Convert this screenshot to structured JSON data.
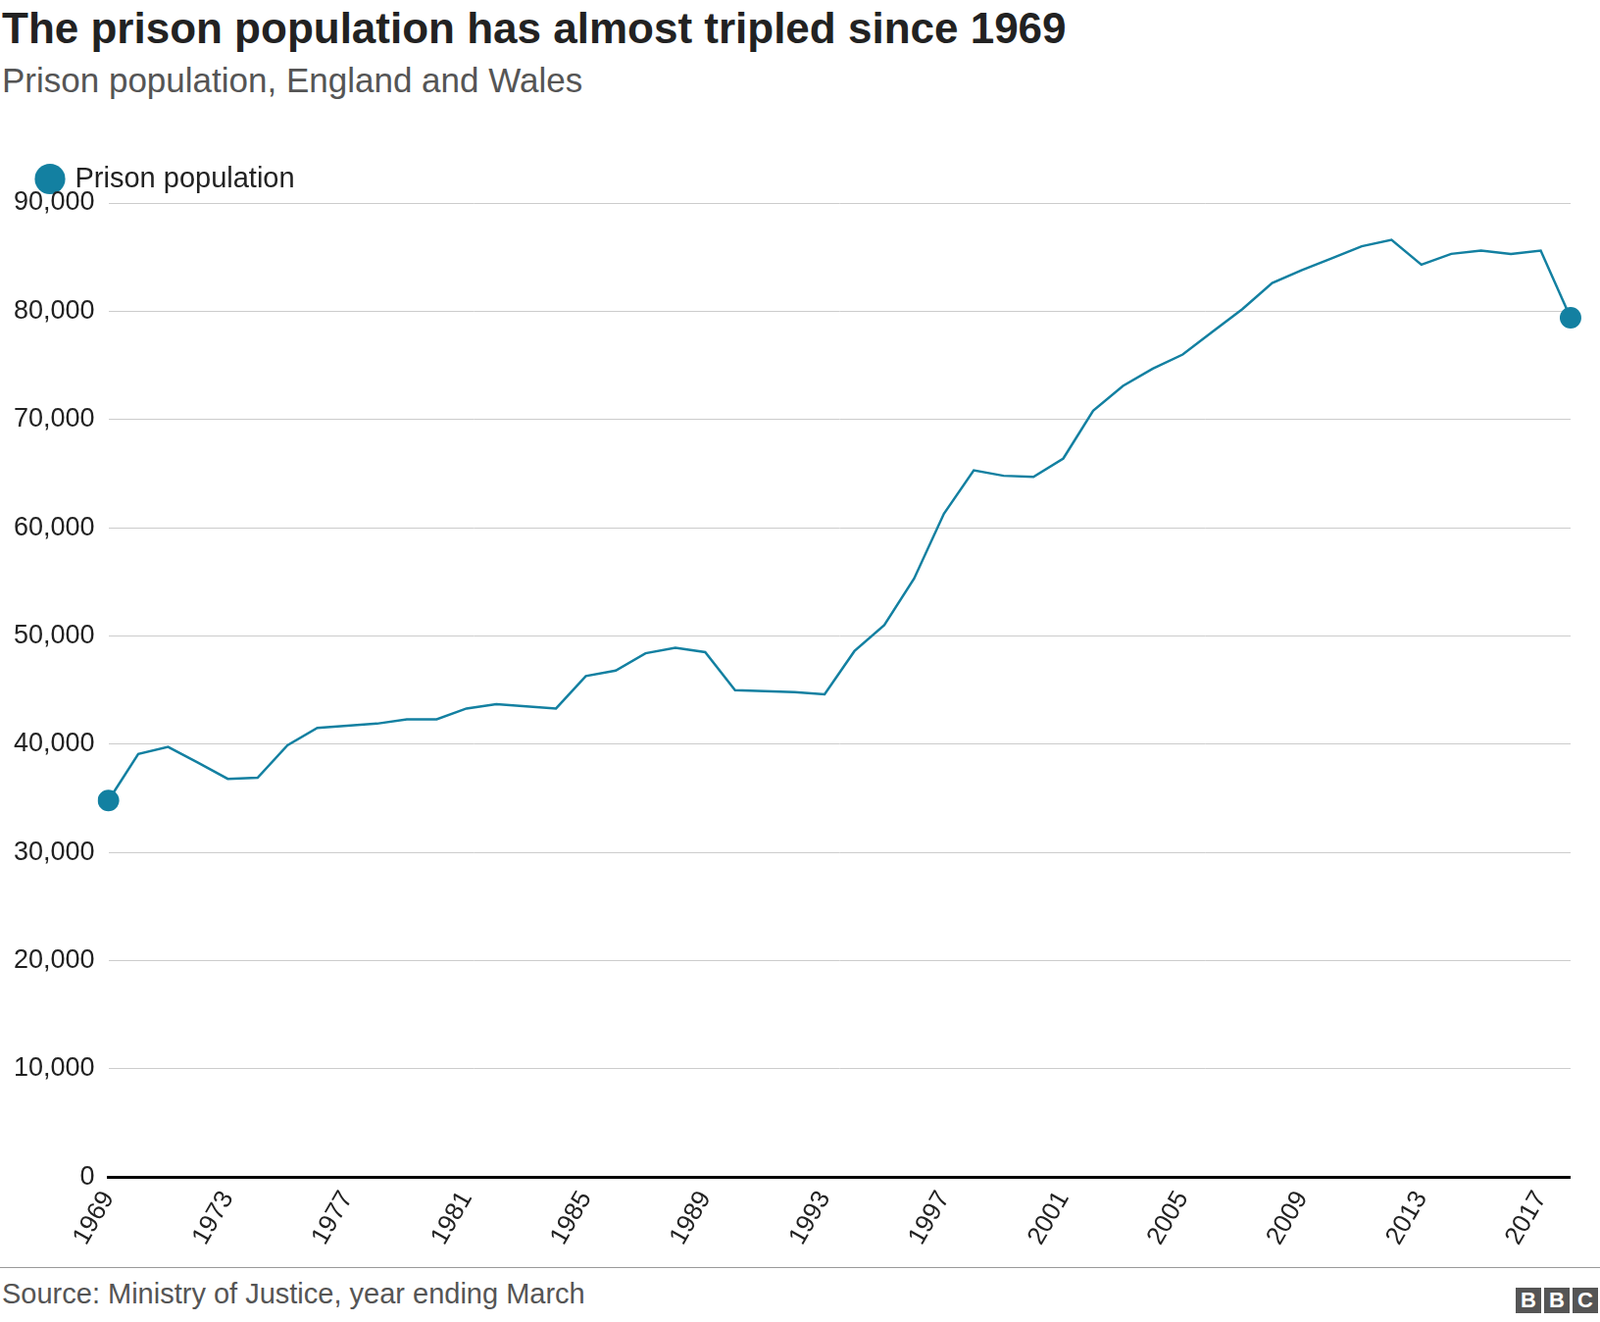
{
  "chart_data": {
    "type": "line",
    "title": "The prison population has almost tripled since 1969",
    "subtitle": "Prison population, England and Wales",
    "source": "Source: Ministry of Justice, year ending March",
    "logo": "BBC",
    "categories": [
      "1969",
      null,
      null,
      null,
      "1973",
      null,
      null,
      null,
      "1977",
      null,
      null,
      null,
      "1981",
      null,
      null,
      null,
      "1985",
      null,
      null,
      null,
      "1989",
      null,
      null,
      null,
      "1993",
      null,
      null,
      null,
      "1997",
      null,
      null,
      null,
      "2001",
      null,
      null,
      null,
      "2005",
      null,
      null,
      null,
      "2009",
      null,
      null,
      null,
      "2013",
      null,
      null,
      null,
      "2017",
      null
    ],
    "series": [
      {
        "name": "Prison population",
        "color": "#1380a1",
        "marker": "circle",
        "values": [
          34800,
          39100,
          39750,
          38300,
          36800,
          36900,
          39900,
          41500,
          41700,
          41900,
          42300,
          42300,
          43300,
          43700,
          43500,
          43300,
          46300,
          46800,
          48400,
          48900,
          48500,
          45000,
          44900,
          44800,
          44600,
          48600,
          51000,
          55300,
          61300,
          65300,
          64800,
          64700,
          66400,
          70800,
          73100,
          74700,
          76000,
          78100,
          80200,
          82600,
          83800,
          84900,
          86000,
          86600,
          84300,
          85300,
          85600,
          85300,
          85600,
          79400
        ]
      }
    ],
    "ylim": [
      0,
      90000
    ],
    "yticks": [
      0,
      {
        "value": 10000,
        "label": "10,000"
      },
      {
        "value": 20000,
        "label": "20,000"
      },
      {
        "value": 30000,
        "label": "30,000"
      },
      {
        "value": 40000,
        "label": "40,000"
      },
      {
        "value": 50000,
        "label": "50,000"
      },
      {
        "value": 60000,
        "label": "60,000"
      },
      {
        "value": 70000,
        "label": "70,000"
      },
      {
        "value": 80000,
        "label": "80,000"
      },
      {
        "value": 90000,
        "label": "90,000"
      }
    ],
    "grid": true,
    "legend": "top-left"
  }
}
